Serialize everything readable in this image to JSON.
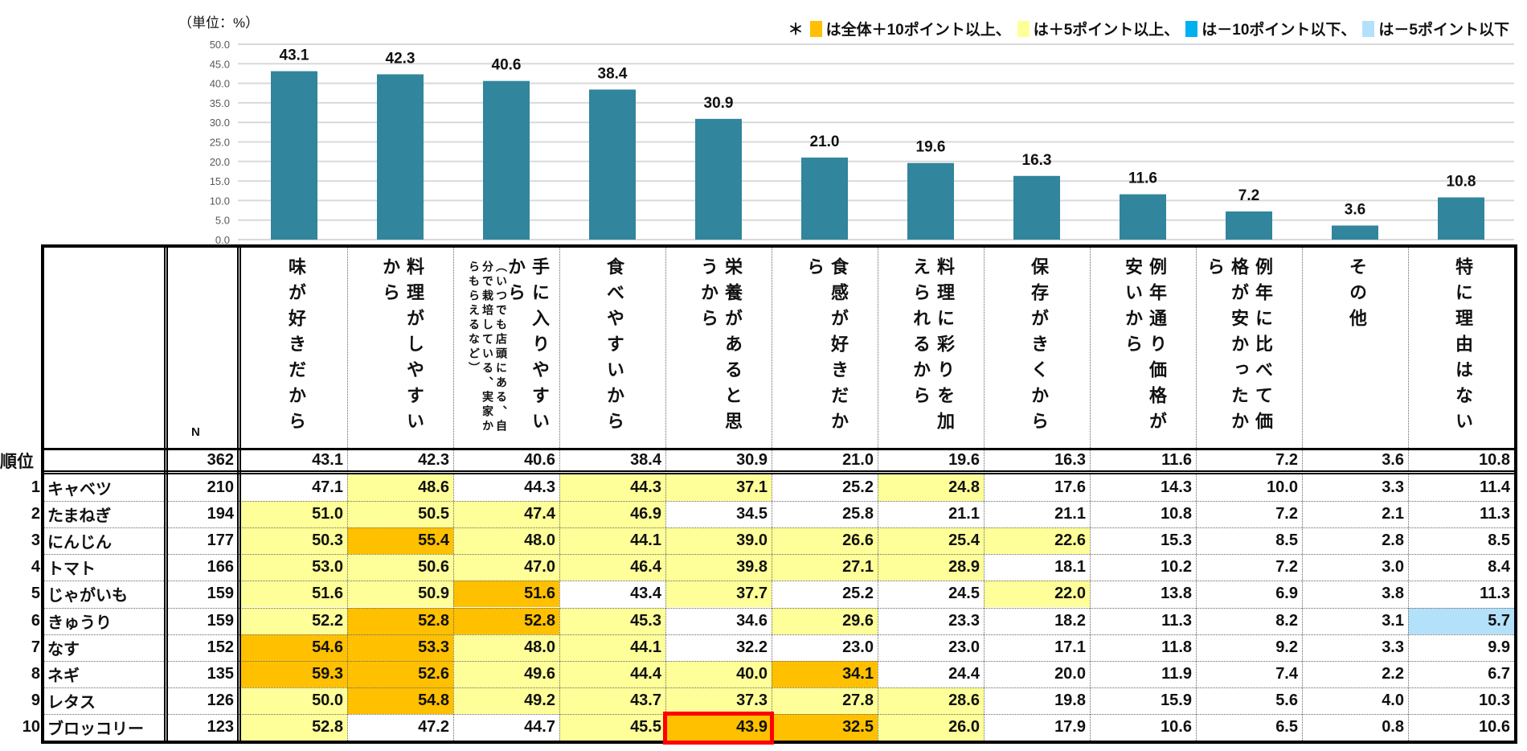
{
  "unit_label": "（単位：%）",
  "legend": {
    "asterisk": "＊",
    "items": [
      {
        "color": "#FFC000",
        "label": "は全体＋10ポイント以上、"
      },
      {
        "color": "#FFFF99",
        "label": "は＋5ポイント以上、"
      },
      {
        "color": "#00B0F0",
        "label": "は－10ポイント以下、"
      },
      {
        "color": "#B4E1FA",
        "label": "は－5ポイント以下"
      }
    ]
  },
  "chart_data": {
    "type": "bar",
    "title": "",
    "ylabel": "（単位：%）",
    "ylim": [
      0,
      50
    ],
    "yticks": [
      "0.0",
      "5.0",
      "10.0",
      "15.0",
      "20.0",
      "25.0",
      "30.0",
      "35.0",
      "40.0",
      "45.0",
      "50.0"
    ],
    "grid": true,
    "bar_color": "#31859C",
    "categories": [
      "味が好きだから",
      "料理がしやすいから",
      "手に入りやすいから（いつでも店頭にある、自分で栽培している、実家からもらえるなど）",
      "食べやすいから",
      "栄養があると思うから",
      "食感が好きだから",
      "料理に彩りを加えられるから",
      "保存がきくから",
      "例年通り価格が安いから",
      "例年に比べて価格が安かったから",
      "その他",
      "特に理由はない"
    ],
    "values": [
      43.1,
      42.3,
      40.6,
      38.4,
      30.9,
      21.0,
      19.6,
      16.3,
      11.6,
      7.2,
      3.6,
      10.8
    ],
    "data_labels": [
      "43.1",
      "42.3",
      "40.6",
      "38.4",
      "30.9",
      "21.0",
      "19.6",
      "16.3",
      "11.6",
      "7.2",
      "3.6",
      "10.8"
    ]
  },
  "table": {
    "n_header": "N",
    "rank_header": "順位",
    "headers": [
      {
        "main": "味が好きだから"
      },
      {
        "main": "料理がしやすいから"
      },
      {
        "main": "手に入りやすいから",
        "sub": "（いつでも店頭にある、自分で栽培している、実家からもらえるなど）"
      },
      {
        "main": "食べやすいから"
      },
      {
        "main": "栄養があると思うから"
      },
      {
        "main": "食感が好きだから"
      },
      {
        "main": "料理に彩りを加えられるから"
      },
      {
        "main": "保存がきくから"
      },
      {
        "main": "例年通り価格が安いから"
      },
      {
        "main": "例年に比べて価格が安かったから"
      },
      {
        "main": "その他"
      },
      {
        "main": "特に理由はない"
      }
    ],
    "total": {
      "n": "362",
      "values": [
        "43.1",
        "42.3",
        "40.6",
        "38.4",
        "30.9",
        "21.0",
        "19.6",
        "16.3",
        "11.6",
        "7.2",
        "3.6",
        "10.8"
      ]
    },
    "highlight_legend": {
      "2": "#FFC000",
      "1": "#FFFF99",
      "-1": "#B4E1FA",
      "-2": "#00B0F0",
      "0": "#FFFFFF"
    },
    "rows": [
      {
        "rank": "1",
        "name": "キャベツ",
        "n": "210",
        "values": [
          "47.1",
          "48.6",
          "44.3",
          "44.3",
          "37.1",
          "25.2",
          "24.8",
          "17.6",
          "14.3",
          "10.0",
          "3.3",
          "11.4"
        ],
        "levels": [
          0,
          1,
          0,
          1,
          1,
          0,
          1,
          0,
          0,
          0,
          0,
          0
        ]
      },
      {
        "rank": "2",
        "name": "たまねぎ",
        "n": "194",
        "values": [
          "51.0",
          "50.5",
          "47.4",
          "46.9",
          "34.5",
          "25.8",
          "21.1",
          "21.1",
          "10.8",
          "7.2",
          "2.1",
          "11.3"
        ],
        "levels": [
          1,
          1,
          1,
          1,
          0,
          0,
          0,
          0,
          0,
          0,
          0,
          0
        ]
      },
      {
        "rank": "3",
        "name": "にんじん",
        "n": "177",
        "values": [
          "50.3",
          "55.4",
          "48.0",
          "44.1",
          "39.0",
          "26.6",
          "25.4",
          "22.6",
          "15.3",
          "8.5",
          "2.8",
          "8.5"
        ],
        "levels": [
          1,
          2,
          1,
          1,
          1,
          1,
          1,
          1,
          0,
          0,
          0,
          0
        ]
      },
      {
        "rank": "4",
        "name": "トマト",
        "n": "166",
        "values": [
          "53.0",
          "50.6",
          "47.0",
          "46.4",
          "39.8",
          "27.1",
          "28.9",
          "18.1",
          "10.2",
          "7.2",
          "3.0",
          "8.4"
        ],
        "levels": [
          1,
          1,
          1,
          1,
          1,
          1,
          1,
          0,
          0,
          0,
          0,
          0
        ]
      },
      {
        "rank": "5",
        "name": "じゃがいも",
        "n": "159",
        "values": [
          "51.6",
          "50.9",
          "51.6",
          "43.4",
          "37.7",
          "25.2",
          "24.5",
          "22.0",
          "13.8",
          "6.9",
          "3.8",
          "11.3"
        ],
        "levels": [
          1,
          1,
          2,
          0,
          1,
          0,
          0,
          1,
          0,
          0,
          0,
          0
        ]
      },
      {
        "rank": "6",
        "name": "きゅうり",
        "n": "159",
        "values": [
          "52.2",
          "52.8",
          "52.8",
          "45.3",
          "34.6",
          "29.6",
          "23.3",
          "18.2",
          "11.3",
          "8.2",
          "3.1",
          "5.7"
        ],
        "levels": [
          1,
          2,
          2,
          1,
          0,
          1,
          0,
          0,
          0,
          0,
          0,
          -1
        ]
      },
      {
        "rank": "7",
        "name": "なす",
        "n": "152",
        "values": [
          "54.6",
          "53.3",
          "48.0",
          "44.1",
          "32.2",
          "23.0",
          "23.0",
          "17.1",
          "11.8",
          "9.2",
          "3.3",
          "9.9"
        ],
        "levels": [
          2,
          2,
          1,
          1,
          0,
          0,
          0,
          0,
          0,
          0,
          0,
          0
        ]
      },
      {
        "rank": "8",
        "name": "ネギ",
        "n": "135",
        "values": [
          "59.3",
          "52.6",
          "49.6",
          "44.4",
          "40.0",
          "34.1",
          "24.4",
          "20.0",
          "11.9",
          "7.4",
          "2.2",
          "6.7"
        ],
        "levels": [
          2,
          2,
          1,
          1,
          1,
          2,
          0,
          0,
          0,
          0,
          0,
          0
        ]
      },
      {
        "rank": "9",
        "name": "レタス",
        "n": "126",
        "values": [
          "50.0",
          "54.8",
          "49.2",
          "43.7",
          "37.3",
          "27.8",
          "28.6",
          "19.8",
          "15.9",
          "5.6",
          "4.0",
          "10.3"
        ],
        "levels": [
          1,
          2,
          1,
          1,
          1,
          1,
          1,
          0,
          0,
          0,
          0,
          0
        ]
      },
      {
        "rank": "10",
        "name": "ブロッコリー",
        "n": "123",
        "values": [
          "52.8",
          "47.2",
          "44.7",
          "45.5",
          "43.9",
          "32.5",
          "26.0",
          "17.9",
          "10.6",
          "6.5",
          "0.8",
          "10.6"
        ],
        "levels": [
          1,
          0,
          0,
          1,
          2,
          2,
          1,
          0,
          0,
          0,
          0,
          0
        ]
      }
    ],
    "selected_cell": {
      "row": 9,
      "col": 4,
      "color": "#FF0000"
    }
  }
}
